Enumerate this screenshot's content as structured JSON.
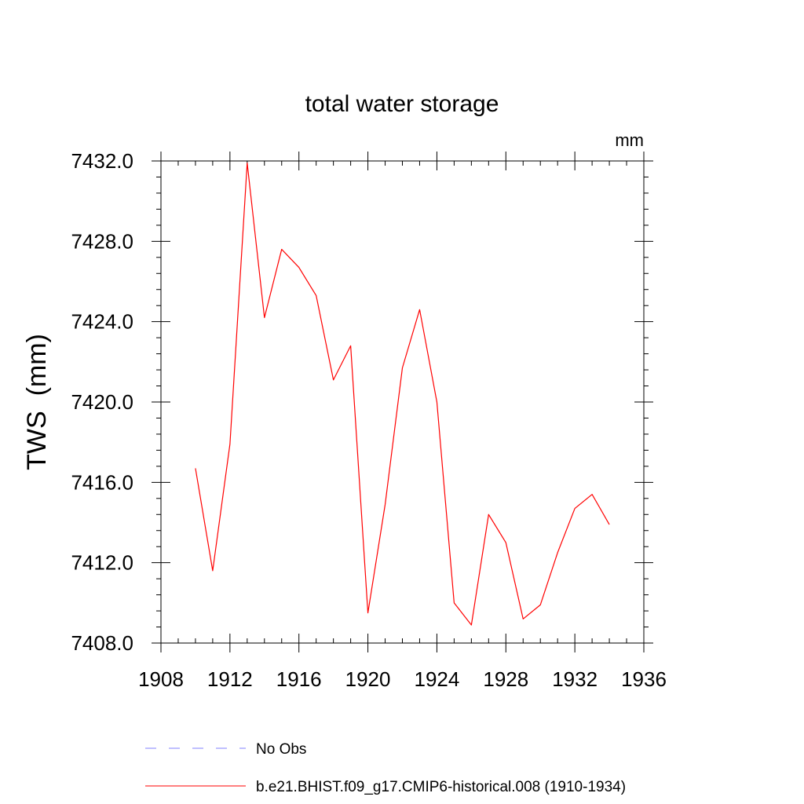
{
  "chart_data": {
    "type": "line",
    "title": "total water storage",
    "units": "mm",
    "xlabel": "",
    "ylabel": "TWS  (mm)",
    "xlim": [
      1908,
      1936
    ],
    "ylim": [
      7408,
      7432
    ],
    "xticks": [
      1908,
      1912,
      1916,
      1920,
      1924,
      1928,
      1932,
      1936
    ],
    "xtick_labels": [
      "1908",
      "1912",
      "1916",
      "1920",
      "1924",
      "1928",
      "1932",
      "1936"
    ],
    "yticks": [
      7408,
      7412,
      7416,
      7420,
      7424,
      7428,
      7432
    ],
    "ytick_labels": [
      "7408.0",
      "7412.0",
      "7416.0",
      "7420.0",
      "7424.0",
      "7428.0",
      "7432.0"
    ],
    "grid": false,
    "series": [
      {
        "name": "b.e21.BHIST.f09_g17.CMIP6-historical.008 (1910-1934)",
        "color": "#ff0000",
        "dash": "solid",
        "x": [
          1910,
          1911,
          1912,
          1913,
          1914,
          1915,
          1916,
          1917,
          1918,
          1919,
          1920,
          1921,
          1922,
          1923,
          1924,
          1925,
          1926,
          1927,
          1928,
          1929,
          1930,
          1931,
          1932,
          1933,
          1934
        ],
        "y": [
          7416.7,
          7411.6,
          7417.9,
          7431.9,
          7424.2,
          7427.6,
          7426.7,
          7425.3,
          7421.1,
          7422.8,
          7409.5,
          7414.9,
          7421.7,
          7424.6,
          7420.0,
          7410.0,
          7408.9,
          7414.4,
          7413.0,
          7409.2,
          7409.9,
          7412.5,
          7414.7,
          7415.4,
          7413.9
        ]
      }
    ],
    "legend": [
      {
        "label": "No Obs",
        "color": "#8080ff",
        "dash": "dashed"
      },
      {
        "label": "b.e21.BHIST.f09_g17.CMIP6-historical.008 (1910-1934)",
        "color": "#ff0000",
        "dash": "solid"
      }
    ]
  }
}
